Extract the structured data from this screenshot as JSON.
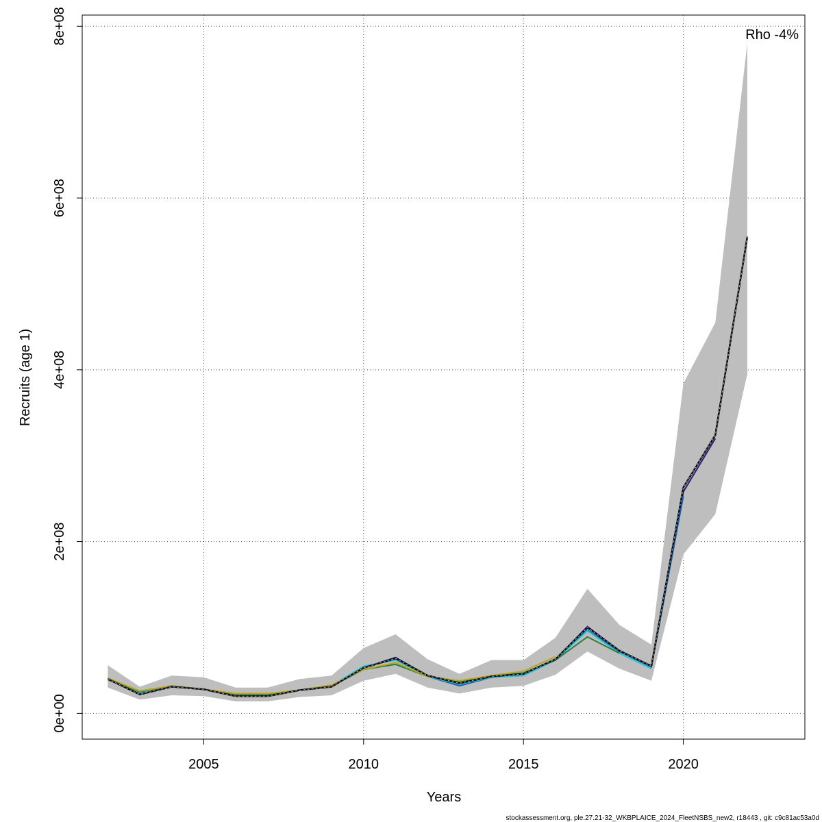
{
  "chart_data": {
    "type": "line",
    "title": "",
    "xlabel": "Years",
    "ylabel": "Recruits (age 1)",
    "xlim": [
      2001.2,
      2023.8
    ],
    "ylim": [
      -30000000.0,
      813000000.0
    ],
    "x_ticks": [
      2005,
      2010,
      2015,
      2020
    ],
    "x_tick_labels": [
      "2005",
      "2010",
      "2015",
      "2020"
    ],
    "y_ticks": [
      0,
      200000000,
      400000000,
      600000000,
      800000000
    ],
    "y_tick_labels": [
      "0e+00",
      "2e+08",
      "4e+08",
      "6e+08",
      "8e+08"
    ],
    "grid": true,
    "annotation": "Rho -4%",
    "footer": "stockassessment.org, ple.27.21-32_WKBPLAICE_2024_FleetNSBS_new2, r18443 , git: c9c81ac53a0d",
    "confidence_band": {
      "x": [
        2002,
        2003,
        2004,
        2005,
        2006,
        2007,
        2008,
        2009,
        2010,
        2011,
        2012,
        2013,
        2014,
        2015,
        2016,
        2017,
        2018,
        2019,
        2020,
        2021,
        2022
      ],
      "upper": [
        56000000,
        31000000,
        44000000,
        42000000,
        30000000,
        30000000,
        40000000,
        44000000,
        76000000,
        92000000,
        63000000,
        46000000,
        62000000,
        62000000,
        88000000,
        145000000,
        103000000,
        80000000,
        384000000,
        455000000,
        781000000
      ],
      "lower": [
        30000000,
        16000000,
        21000000,
        20000000,
        14000000,
        14000000,
        19000000,
        21000000,
        38000000,
        46000000,
        30000000,
        23000000,
        30000000,
        32000000,
        45000000,
        72000000,
        52000000,
        38000000,
        185000000,
        232000000,
        395000000
      ]
    },
    "series": [
      {
        "color": "#0a0a0a",
        "dashed": true,
        "x": [
          2002,
          2003,
          2004,
          2005,
          2006,
          2007,
          2008,
          2009,
          2010,
          2011,
          2012,
          2013,
          2014,
          2015,
          2016,
          2017,
          2018,
          2019,
          2020,
          2021,
          2022
        ],
        "values": [
          40000000,
          22000000,
          31000000,
          28000000,
          20000000,
          20000000,
          27000000,
          31000000,
          53000000,
          64000000,
          44000000,
          35000000,
          43000000,
          46000000,
          63000000,
          100000000,
          73000000,
          55000000,
          263000000,
          324000000,
          555000000
        ]
      },
      {
        "color": "#2e1a7a",
        "dashed": false,
        "x": [
          2002,
          2003,
          2004,
          2005,
          2006,
          2007,
          2008,
          2009,
          2010,
          2011,
          2012,
          2013,
          2014,
          2015,
          2016,
          2017,
          2018,
          2019,
          2020,
          2021
        ],
        "values": [
          40000000,
          22000000,
          31000000,
          28000000,
          20000000,
          20000000,
          27000000,
          31000000,
          53000000,
          65000000,
          44000000,
          34000000,
          43000000,
          46000000,
          63000000,
          101000000,
          73000000,
          55000000,
          258000000,
          320000000
        ]
      },
      {
        "color": "#1565c0",
        "dashed": false,
        "x": [
          2002,
          2003,
          2004,
          2005,
          2006,
          2007,
          2008,
          2009,
          2010,
          2011,
          2012,
          2013,
          2014,
          2015,
          2016,
          2017,
          2018,
          2019,
          2020
        ],
        "values": [
          40000000,
          23000000,
          32000000,
          28000000,
          21000000,
          21000000,
          27000000,
          31000000,
          54000000,
          63000000,
          43000000,
          32000000,
          42000000,
          44000000,
          62000000,
          97000000,
          72000000,
          54000000,
          253000000
        ]
      },
      {
        "color": "#26c6da",
        "dashed": false,
        "x": [
          2002,
          2003,
          2004,
          2005,
          2006,
          2007,
          2008,
          2009,
          2010,
          2011,
          2012,
          2013,
          2014,
          2015,
          2016,
          2017,
          2018,
          2019
        ],
        "values": [
          39000000,
          24000000,
          32000000,
          28000000,
          22000000,
          22000000,
          27000000,
          32000000,
          55000000,
          62000000,
          43000000,
          34000000,
          42000000,
          44000000,
          62000000,
          96000000,
          70000000,
          52000000
        ]
      },
      {
        "color": "#2e7d32",
        "dashed": false,
        "x": [
          2002,
          2003,
          2004,
          2005,
          2006,
          2007,
          2008,
          2009,
          2010,
          2011,
          2012,
          2013,
          2014,
          2015,
          2016,
          2017,
          2018
        ],
        "values": [
          40000000,
          25000000,
          32000000,
          28000000,
          22000000,
          22000000,
          27000000,
          32000000,
          51000000,
          57000000,
          43000000,
          37000000,
          43000000,
          47000000,
          62000000,
          89000000,
          70000000
        ]
      },
      {
        "color": "#b8a323",
        "dashed": false,
        "x": [
          2002,
          2003,
          2004,
          2005,
          2006,
          2007,
          2008,
          2009,
          2010,
          2011,
          2012,
          2013,
          2014,
          2015,
          2016
        ],
        "values": [
          41000000,
          26000000,
          32000000,
          28000000,
          23000000,
          23000000,
          27000000,
          33000000,
          51000000,
          59000000,
          43000000,
          38000000,
          44000000,
          49000000,
          66000000
        ]
      }
    ]
  }
}
